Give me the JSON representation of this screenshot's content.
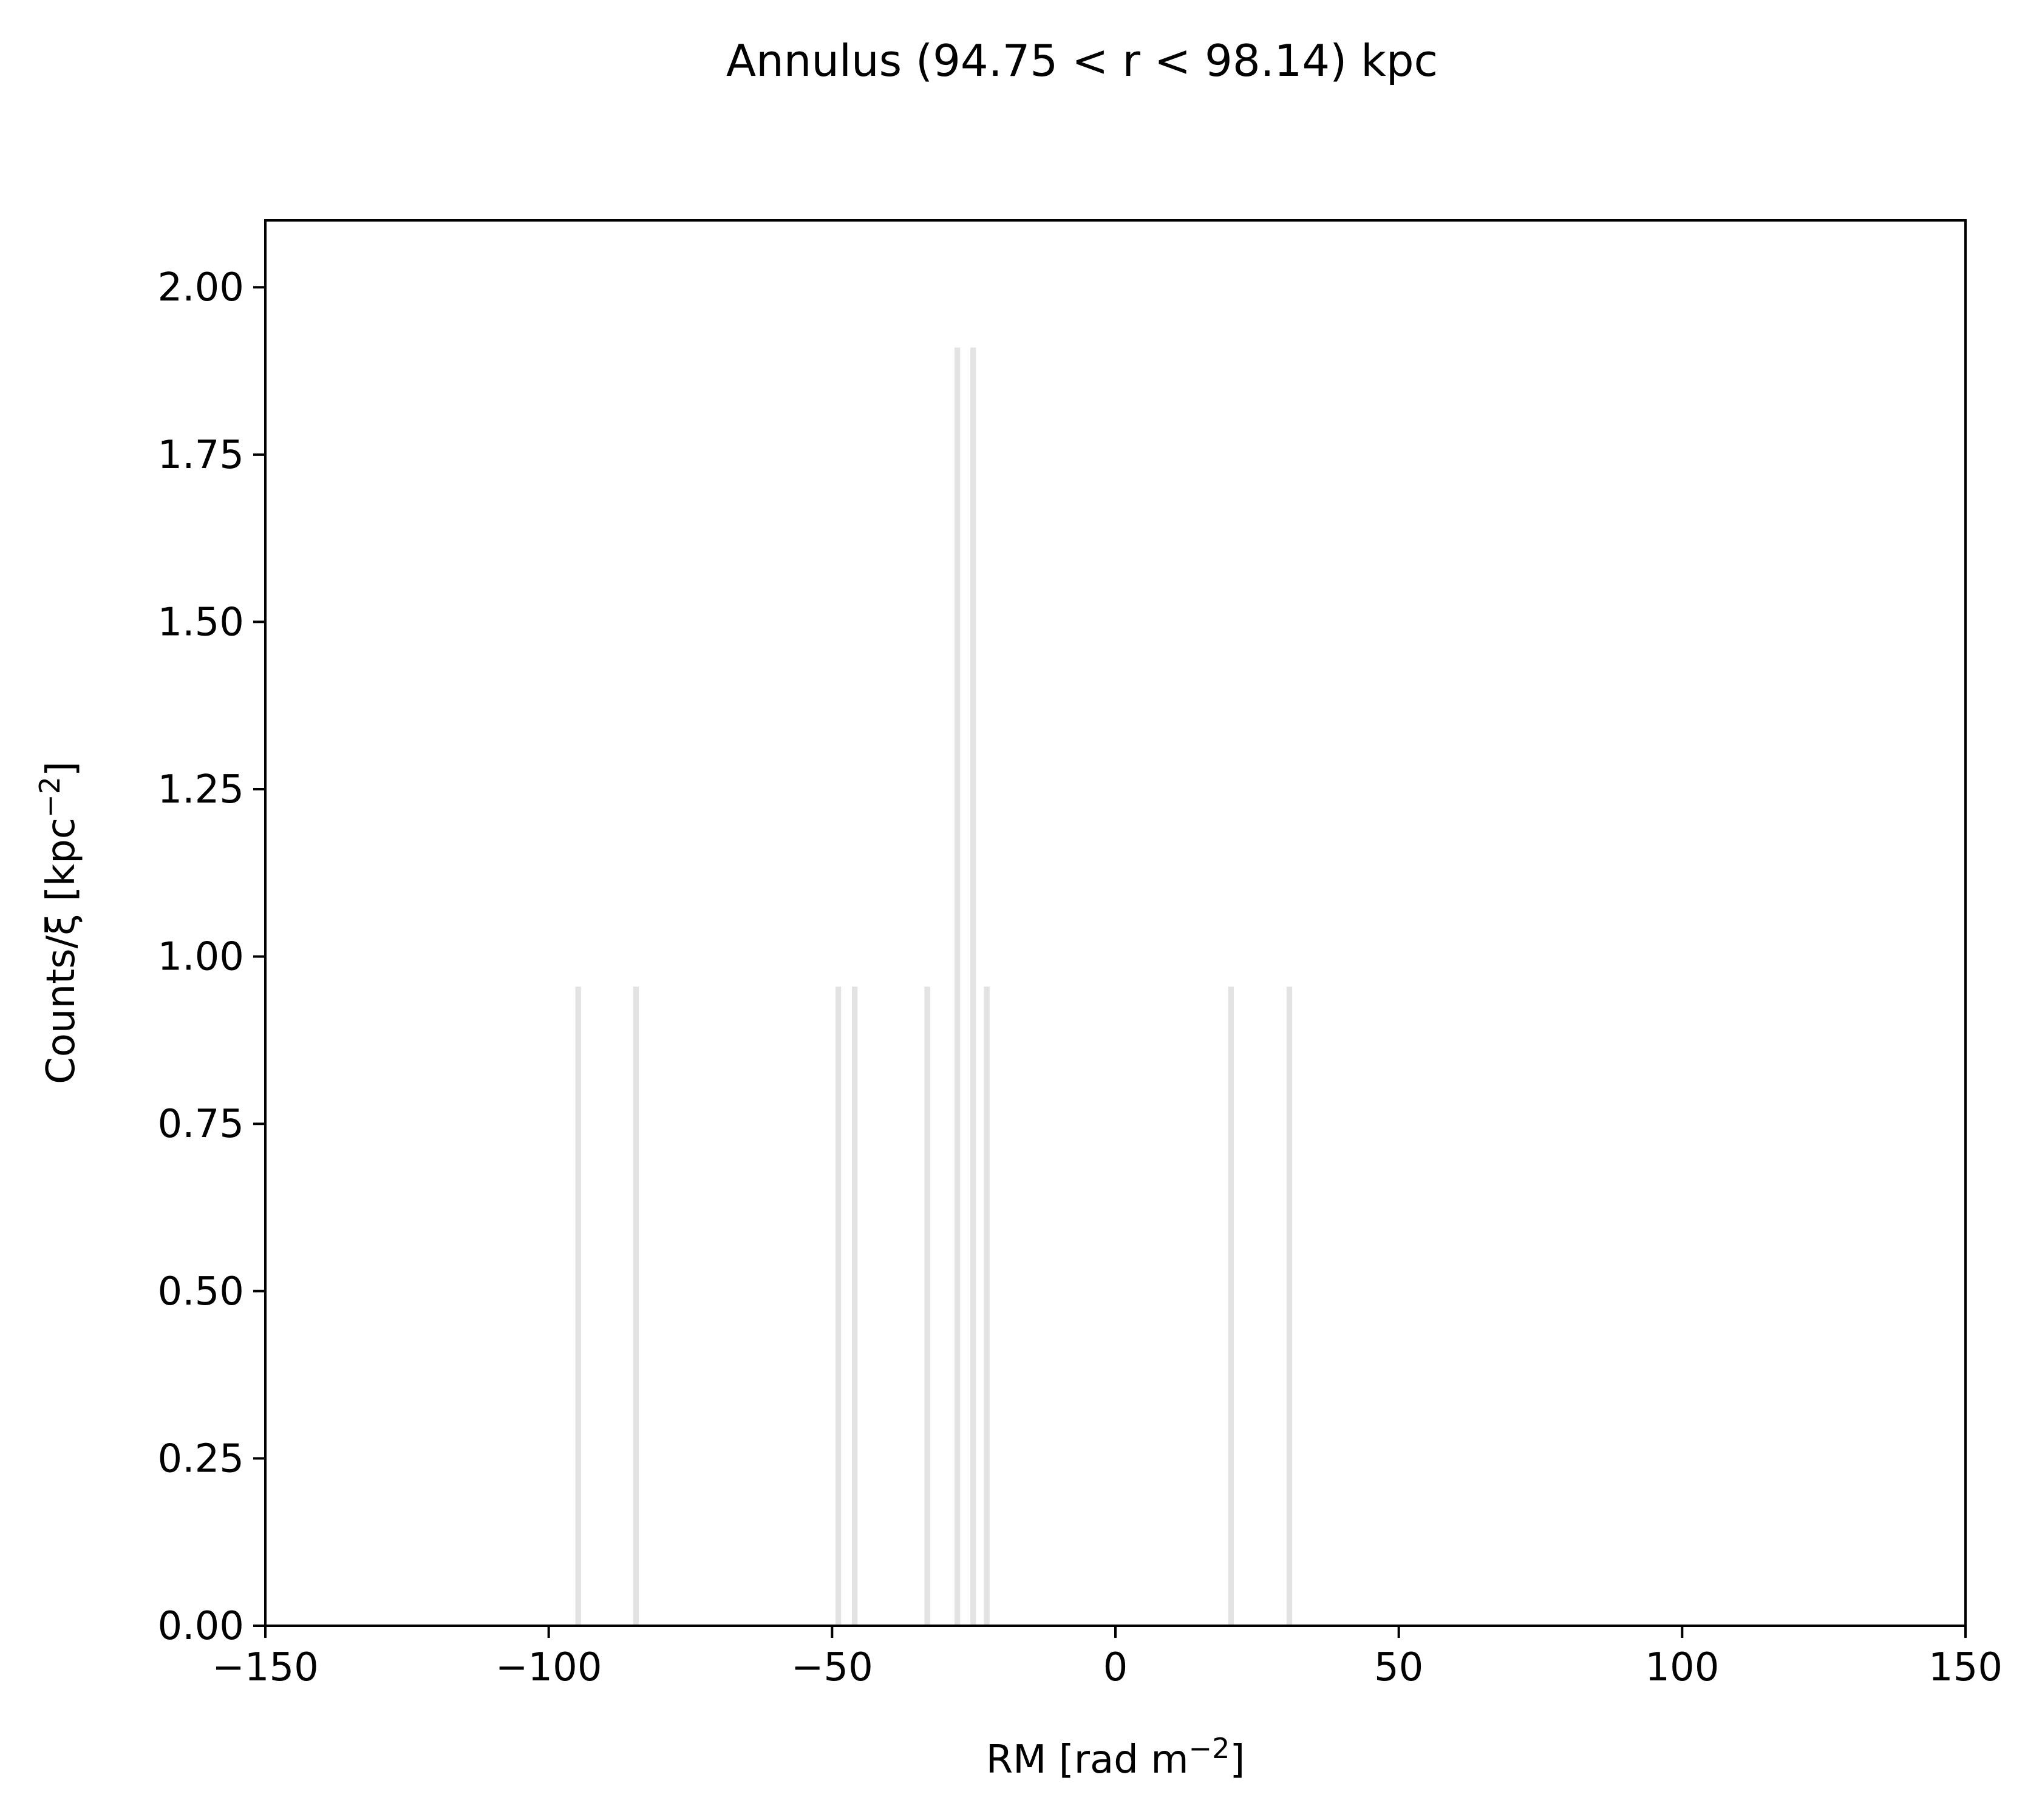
{
  "chart_data": {
    "type": "bar",
    "title": "Annulus (94.75 < r < 98.14) kpc",
    "xlabel": {
      "text": "RM [rad m",
      "superscript": "−2",
      "suffix": "]"
    },
    "ylabel": {
      "text": "Counts/ξ [kpc",
      "superscript": "−2",
      "suffix": "]"
    },
    "xlim": [
      -150,
      150
    ],
    "ylim": [
      0,
      2.1
    ],
    "xticks": [
      -150,
      -100,
      -50,
      0,
      50,
      100,
      150
    ],
    "xtick_labels": [
      "−150",
      "−100",
      "−50",
      "0",
      "50",
      "100",
      "150"
    ],
    "yticks": [
      0,
      0.25,
      0.5,
      0.75,
      1.0,
      1.25,
      1.5,
      1.75,
      2.0
    ],
    "ytick_labels": [
      "0.00",
      "0.25",
      "0.50",
      "0.75",
      "1.00",
      "1.25",
      "1.50",
      "1.75",
      "2.00"
    ],
    "bar_width": 1.0,
    "bar_color": "#e3e3e3",
    "grid": false,
    "bars": [
      {
        "x": -94.8,
        "value": 0.955
      },
      {
        "x": -84.6,
        "value": 0.955
      },
      {
        "x": -48.9,
        "value": 0.955
      },
      {
        "x": -46.0,
        "value": 0.955
      },
      {
        "x": -33.2,
        "value": 0.955
      },
      {
        "x": -27.9,
        "value": 1.91
      },
      {
        "x": -25.1,
        "value": 1.91
      },
      {
        "x": -22.7,
        "value": 0.955
      },
      {
        "x": 20.4,
        "value": 0.955
      },
      {
        "x": 30.7,
        "value": 0.955
      }
    ]
  }
}
